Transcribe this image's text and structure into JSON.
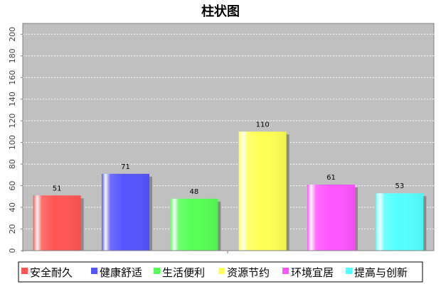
{
  "chart_data": {
    "type": "bar",
    "title": "柱状图",
    "categories": [
      "安全耐久",
      "健康舒适",
      "生活便利",
      "资源节约",
      "环境宜居",
      "提高与创新"
    ],
    "values": [
      51,
      71,
      48,
      110,
      61,
      53
    ],
    "colors": [
      "#ff5555",
      "#5555ff",
      "#55ff55",
      "#ffff55",
      "#ff55ff",
      "#55ffff"
    ],
    "ylim": [
      0,
      210
    ],
    "yticks": [
      0,
      20,
      40,
      60,
      80,
      100,
      120,
      140,
      160,
      180,
      200
    ],
    "grid": true,
    "legend": "bottom",
    "background": "#c0c0c0"
  }
}
